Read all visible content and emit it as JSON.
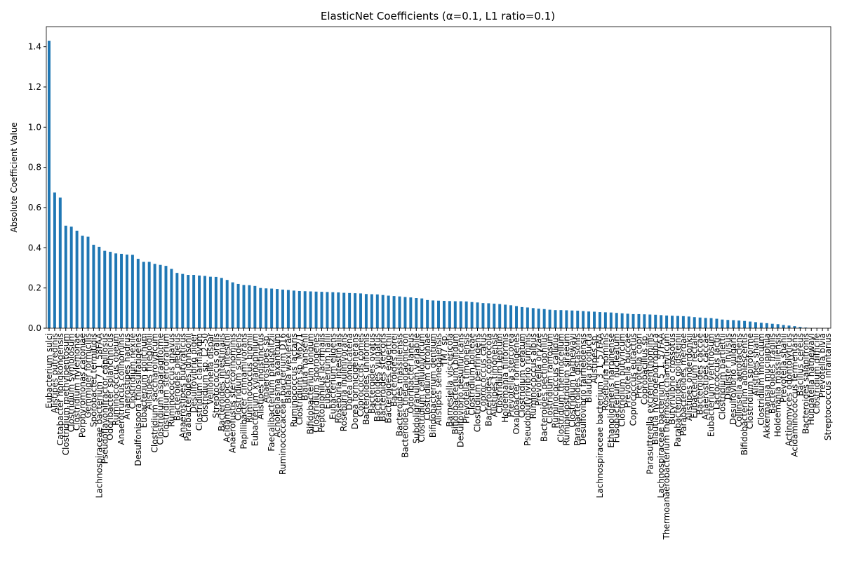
{
  "chart_data": {
    "type": "bar",
    "title": "ElasticNet Coefficients (α=0.1, L1 ratio=0.1)",
    "y_label": "Absolute Coefficient Value",
    "color": "#1f77b4",
    "ylim": [
      0,
      1.5
    ],
    "yticks": [
      {
        "value": 0,
        "label": "0.0"
      },
      0.2,
      0.4,
      0.6,
      0.8,
      {
        "value": 1,
        "label": "1.0"
      },
      1.2,
      1.4
    ],
    "categories": [
      "Eubacterium sulci",
      "Alistipes putredinis",
      "Catabacter hongkongensis",
      "Clostridium methylpentosum",
      "Clostridium symbiosum",
      "Clostridium hylemonae",
      "Porphyromonas catoniae",
      "Gemmiger formicilis",
      "Sporobacter termitidis",
      "Lachnospiraceae bacterium 7_1_58FAA",
      "Pseudoflavonifractor capillosus",
      "Odoribacter splanchnicus",
      "Ruminococcus obeum",
      "Anaerotruncus colihominis",
      "Anaerostipes hadrus",
      "Clostridium nexile",
      "Desulfonispora thiosulfatigenes",
      "Eubacterium dolichum",
      "Alistipes finegoldii",
      "Clostridium saccharolyticum",
      "Clostridium asparagiforme",
      "Clostridium stercorarium",
      "Ruminococcus gnavus",
      "Bacteroides plebeius",
      "Anaerostipes butyraticus",
      "Parabacteroides johnsonii",
      "Desulfovibrio piger",
      "Clostridium clariflavum",
      "Clostridium sp. L2-50",
      "Veillonella dispar",
      "Streptococcus oralis",
      "Bacteroides intestinalis",
      "Acidaminococcus intestini",
      "Anaerofustis stercorihominis",
      "Clostridium scindens",
      "Papillibacter cinnamivorans",
      "Ruminococcus bromii",
      "Eubacterium xylanophilum",
      "Alistipes indistinctus",
      "Anaerostipes sp.",
      "Faecalibacterium prausnitzii",
      "Acholeplasma axanthum",
      "Ruminococcaceae bacterium D16",
      "Blautia wexlerae",
      "Ruminococcus lactaris",
      "Clostridium sp. M62/1",
      "Blautia hansenii",
      "Bifidobacterium longum",
      "Clostridium sporogenes",
      "Peptoniphilus lacrimalis",
      "Eubacterium hallii",
      "Eubacterium eligens",
      "Roseburia intestinalis",
      "Roseburia inulinivorans",
      "Dorea longicatena",
      "Dorea formicigenerans",
      "Coprococcus comes",
      "Bacteroides uniformis",
      "Bacteroides ovatus",
      "Bacteroides vulgatus",
      "Bacteroides stercoris",
      "Bacteroides eggerthii",
      "Bacteroides dorei",
      "Bacteroides massiliensis",
      "Bacteroides thetaiotaomicron",
      "Odoribacter laneus",
      "Subdoligranulum variabile",
      "Clostridium cellulolyticum",
      "Clostridium citroniae",
      "Bifidobacterium dentium",
      "Alistipes senegalensis",
      "TM7 sp.",
      "Barnesiella viscericola",
      "Bifidobacterium bifidum",
      "Desulfovibrio desulfuricans",
      "Prevotella timonensis",
      "Clostridium bolteae",
      "Clostridium perfringens",
      "Coprococcus catus",
      "Bacteroides coprocola",
      "Alistipes timonensis",
      "Clostridium leptum",
      "Holdemania filiformis",
      "Prevotella stercorea",
      "Oxalobacter formigenes",
      "Clostridium celatum",
      "Pseudobutyrivibrio ruminis",
      "Ruminococcus albus",
      "Prevotella oryzae",
      "Bacteroides pectinophilus",
      "Clostridium ramosum",
      "Ruminococcus callidus",
      "Clostridium thermocellum",
      "Ruminiclostridium siraeum",
      "Clostridium hathewayi",
      "Parabacteroides distasonis",
      "Desulfovibrio fairfieldensis",
      "Blautia producta",
      "Alistipes sp.",
      "Lachnospiraceae bacterium 3_1_57FAA",
      "Roseburia hominis",
      "Ethanoligenens harbinense",
      "Fusobacterium nucleatum",
      "Clostridium butyricum",
      "Prevotella buccae",
      "Coprococcus eutactus",
      "Prevotella copri",
      "Coprobacillus sp.",
      "Parasutterella excrementihominis",
      "Blautia hydrogenotrophica",
      "Lachnospiraceae bacterium 5_1_57FAA",
      "Thermoanaerobacterium thermosaccharolyticum",
      "Butyrivibrio crossotus",
      "Parabacteroides goldsteinii",
      "Parabacteroides merdae",
      "Alistipes onderdonkii",
      "Eubacterium rectale",
      "Bacteroides caccae",
      "Anaerostipes caccae",
      "Eubacterium ventriosum",
      "Lactococcus lactis",
      "Clostridium bartlettii",
      "Dialister invisus",
      "Desulfovibrio vulgaris",
      "Collinsella aerofaciens",
      "Bifidobacterium adolescentis",
      "Clostridium spiroforme",
      "Alistipes shahii",
      "Clostridium innocuum",
      "Akkermansia muciniphila",
      "Bacteroides fragilis",
      "Holdemania massiliensis",
      "Prevotella shahii",
      "Actinomyces odontolyticus",
      "Acidaminococcus fermentans",
      "Bacillus cereus",
      "Bacteroides salanitronis",
      "Hungatella hathewayi",
      "Clostridium difficile",
      "Prevotella bivia",
      "Streptococcus infantarius"
    ],
    "values": [
      1.43,
      0.675,
      0.65,
      0.51,
      0.505,
      0.485,
      0.46,
      0.455,
      0.415,
      0.405,
      0.385,
      0.38,
      0.372,
      0.37,
      0.366,
      0.365,
      0.345,
      0.33,
      0.33,
      0.32,
      0.315,
      0.31,
      0.295,
      0.275,
      0.27,
      0.265,
      0.265,
      0.262,
      0.26,
      0.256,
      0.255,
      0.25,
      0.24,
      0.228,
      0.22,
      0.215,
      0.214,
      0.21,
      0.2,
      0.198,
      0.197,
      0.195,
      0.192,
      0.19,
      0.187,
      0.185,
      0.184,
      0.183,
      0.182,
      0.181,
      0.18,
      0.179,
      0.178,
      0.176,
      0.175,
      0.174,
      0.173,
      0.17,
      0.169,
      0.168,
      0.165,
      0.162,
      0.16,
      0.158,
      0.155,
      0.153,
      0.15,
      0.148,
      0.14,
      0.138,
      0.137,
      0.136,
      0.135,
      0.134,
      0.134,
      0.133,
      0.13,
      0.128,
      0.125,
      0.124,
      0.122,
      0.12,
      0.117,
      0.114,
      0.11,
      0.105,
      0.103,
      0.1,
      0.097,
      0.095,
      0.092,
      0.09,
      0.09,
      0.089,
      0.088,
      0.087,
      0.085,
      0.083,
      0.082,
      0.08,
      0.079,
      0.078,
      0.076,
      0.074,
      0.072,
      0.07,
      0.07,
      0.069,
      0.068,
      0.067,
      0.065,
      0.063,
      0.062,
      0.061,
      0.06,
      0.058,
      0.055,
      0.053,
      0.051,
      0.05,
      0.047,
      0.043,
      0.041,
      0.04,
      0.038,
      0.036,
      0.033,
      0.03,
      0.027,
      0.025,
      0.022,
      0.02,
      0.016,
      0.013,
      0.01,
      0.006,
      0.003,
      0,
      0,
      0,
      0
    ]
  }
}
